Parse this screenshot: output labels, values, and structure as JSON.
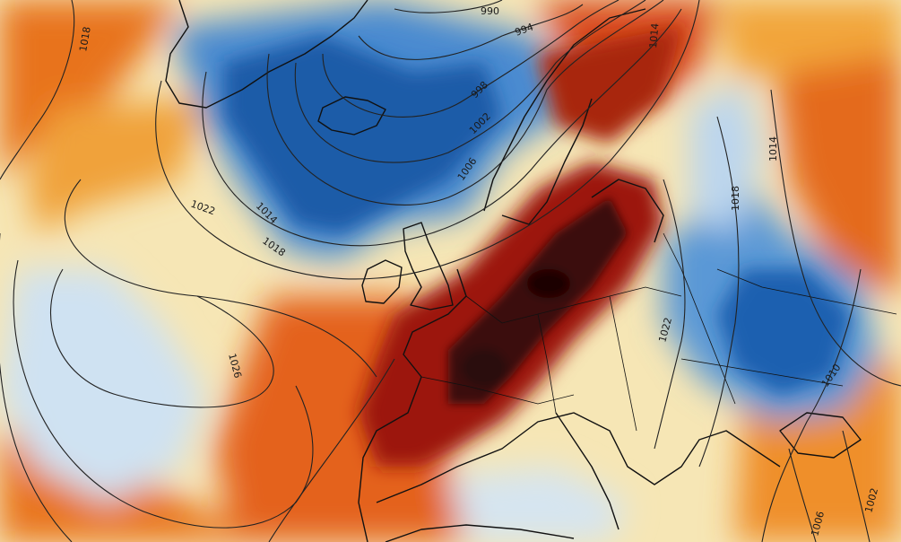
{
  "map": {
    "type": "weather-anomaly-map",
    "colors": {
      "strong_warm": "#2a0606",
      "warm": "#a01a0c",
      "mild_warm": "#e85a16",
      "light_warm": "#f2a53a",
      "near_zero": "#f7f2d8",
      "light_cool": "#cfe2f2",
      "cool": "#4f8fd0",
      "strong_cool": "#1c5aa6",
      "coastline": "#111111",
      "isobar": "#222222"
    },
    "isobar_labels": [
      "1018",
      "990",
      "994",
      "998",
      "1002",
      "1006",
      "1014",
      "1018",
      "1022",
      "1026",
      "1014",
      "1018",
      "1022",
      "1010",
      "1006",
      "1002",
      "1014"
    ]
  }
}
